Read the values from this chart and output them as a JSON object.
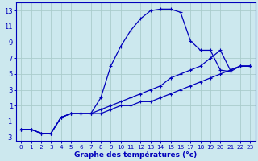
{
  "xlabel": "Graphe des températures (°c)",
  "bg_color": "#cce8ee",
  "line_color": "#0000bb",
  "grid_color": "#aacccc",
  "xlim": [
    -0.5,
    23.5
  ],
  "ylim": [
    -3.5,
    14
  ],
  "xticks": [
    0,
    1,
    2,
    3,
    4,
    5,
    6,
    7,
    8,
    9,
    10,
    11,
    12,
    13,
    14,
    15,
    16,
    17,
    18,
    19,
    20,
    21,
    22,
    23
  ],
  "yticks": [
    -3,
    -1,
    1,
    3,
    5,
    7,
    9,
    11,
    13
  ],
  "line1_x": [
    0,
    1,
    2,
    3,
    4,
    5,
    6,
    7,
    8,
    9,
    10,
    11,
    12,
    13,
    14,
    15,
    16,
    17,
    18,
    19,
    20,
    21,
    22,
    23
  ],
  "line1_y": [
    -2,
    -2,
    -2.5,
    -2.5,
    -0.5,
    0,
    0,
    0,
    2,
    6,
    8.5,
    10.5,
    12,
    13,
    13.2,
    13.2,
    12.8,
    9.2,
    8,
    8,
    5.5,
    5.3,
    6,
    6
  ],
  "line2_x": [
    0,
    1,
    2,
    3,
    4,
    5,
    6,
    7,
    8,
    9,
    10,
    11,
    12,
    13,
    14,
    15,
    16,
    17,
    18,
    19,
    20,
    21,
    22,
    23
  ],
  "line2_y": [
    -2,
    -2,
    -2.5,
    -2.5,
    -0.5,
    0,
    0,
    0,
    0.5,
    1,
    1.5,
    2,
    2.5,
    3,
    3.5,
    4.5,
    5,
    5.5,
    6,
    7,
    8,
    5.5,
    6,
    6
  ],
  "line3_x": [
    0,
    1,
    2,
    3,
    4,
    5,
    6,
    7,
    8,
    9,
    10,
    11,
    12,
    13,
    14,
    15,
    16,
    17,
    18,
    19,
    20,
    21,
    22,
    23
  ],
  "line3_y": [
    -2,
    -2,
    -2.5,
    -2.5,
    -0.5,
    0,
    0,
    0,
    0,
    0.5,
    1,
    1,
    1.5,
    1.5,
    2,
    2.5,
    3,
    3.5,
    4,
    4.5,
    5,
    5.5,
    6,
    6
  ]
}
